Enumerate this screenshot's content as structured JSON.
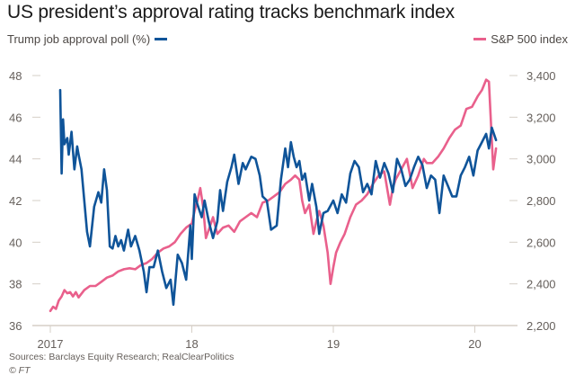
{
  "title": "US president’s approval rating tracks benchmark index",
  "legend": {
    "left_label": "Trump job approval poll (%)",
    "right_label": "S&P 500 index"
  },
  "colors": {
    "approval": "#0f5499",
    "sp500": "#e9608c",
    "axis": "#d6cfc7",
    "tick_text": "#66605c"
  },
  "footer": {
    "source": "Sources: Barclays Equity Research; RealClearPolitics",
    "copyright": "© FT"
  },
  "chart_data": {
    "type": "line",
    "title": "US president’s approval rating tracks benchmark index",
    "xlabel": "",
    "x_ticks": [
      2017,
      2018,
      2019,
      2020
    ],
    "x_tick_labels": [
      "2017",
      "18",
      "19",
      "20"
    ],
    "xlim": [
      2016.95,
      2020.2
    ],
    "y_left": {
      "label": "Trump job approval poll (%)",
      "lim": [
        36,
        48
      ],
      "ticks": [
        36,
        38,
        40,
        42,
        44,
        46,
        48
      ],
      "tick_labels": [
        "36",
        "38",
        "40",
        "42",
        "44",
        "46",
        "48"
      ]
    },
    "y_right": {
      "label": "S&P 500 index",
      "lim": [
        2200,
        3400
      ],
      "ticks": [
        2200,
        2400,
        2600,
        2800,
        3000,
        3200,
        3400
      ],
      "tick_labels": [
        "2,200",
        "2,400",
        "2,600",
        "2,800",
        "3,000",
        "3,200",
        "3,400"
      ]
    },
    "grid": false,
    "legend_placement": "top",
    "series": [
      {
        "name": "Trump job approval poll (%)",
        "axis": "left",
        "x": [
          2017.07,
          2017.08,
          2017.09,
          2017.1,
          2017.12,
          2017.13,
          2017.15,
          2017.17,
          2017.19,
          2017.2,
          2017.22,
          2017.24,
          2017.26,
          2017.28,
          2017.31,
          2017.34,
          2017.36,
          2017.38,
          2017.4,
          2017.42,
          2017.44,
          2017.46,
          2017.48,
          2017.5,
          2017.52,
          2017.55,
          2017.57,
          2017.6,
          2017.63,
          2017.66,
          2017.68,
          2017.7,
          2017.73,
          2017.76,
          2017.79,
          2017.82,
          2017.85,
          2017.87,
          2017.9,
          2017.93,
          2017.96,
          2017.99,
          2018.0,
          2018.02,
          2018.04,
          2018.07,
          2018.09,
          2018.12,
          2018.15,
          2018.18,
          2018.2,
          2018.22,
          2018.25,
          2018.28,
          2018.3,
          2018.33,
          2018.36,
          2018.38,
          2018.4,
          2018.42,
          2018.45,
          2018.48,
          2018.5,
          2018.53,
          2018.56,
          2018.6,
          2018.63,
          2018.66,
          2018.68,
          2018.7,
          2018.72,
          2018.74,
          2018.76,
          2018.78,
          2018.8,
          2018.83,
          2018.85,
          2018.88,
          2018.9,
          2018.93,
          2018.96,
          2019.0,
          2019.03,
          2019.06,
          2019.09,
          2019.12,
          2019.15,
          2019.18,
          2019.21,
          2019.24,
          2019.27,
          2019.3,
          2019.33,
          2019.36,
          2019.39,
          2019.42,
          2019.45,
          2019.48,
          2019.51,
          2019.54,
          2019.57,
          2019.6,
          2019.63,
          2019.66,
          2019.69,
          2019.72,
          2019.75,
          2019.78,
          2019.81,
          2019.84,
          2019.87,
          2019.9,
          2019.93,
          2019.96,
          2019.99,
          2020.02,
          2020.05,
          2020.08,
          2020.1,
          2020.12,
          2020.15
        ],
        "y": [
          47.3,
          43.3,
          45.9,
          44.7,
          45.0,
          44.2,
          45.3,
          43.5,
          44.6,
          44.2,
          43.5,
          42.0,
          40.5,
          39.8,
          41.7,
          42.4,
          41.9,
          43.5,
          42.5,
          39.8,
          39.7,
          40.3,
          39.8,
          40.1,
          39.6,
          40.6,
          39.8,
          40.3,
          39.6,
          38.6,
          37.6,
          38.8,
          38.8,
          39.6,
          38.6,
          37.8,
          38.2,
          37.0,
          39.4,
          39.0,
          38.2,
          40.8,
          39.2,
          42.3,
          41.8,
          41.2,
          42.0,
          41.0,
          40.2,
          41.0,
          42.5,
          41.5,
          42.9,
          43.6,
          44.2,
          42.8,
          43.8,
          43.5,
          43.8,
          44.1,
          44.0,
          43.2,
          42.2,
          42.0,
          40.6,
          40.8,
          43.0,
          44.5,
          43.6,
          44.8,
          44.1,
          43.6,
          43.9,
          43.0,
          43.3,
          42.0,
          42.8,
          41.7,
          40.4,
          41.4,
          41.5,
          42.0,
          41.4,
          42.3,
          41.9,
          43.3,
          43.9,
          43.6,
          42.4,
          42.8,
          42.3,
          43.9,
          43.1,
          43.8,
          43.3,
          42.4,
          44.0,
          43.5,
          42.7,
          43.0,
          43.6,
          44.1,
          43.7,
          42.6,
          43.2,
          43.0,
          41.4,
          43.2,
          42.7,
          42.2,
          42.2,
          43.2,
          43.6,
          44.1,
          43.2,
          44.4,
          44.8,
          45.2,
          44.5,
          45.5,
          44.9
        ]
      },
      {
        "name": "S&P 500 index",
        "axis": "right",
        "x": [
          2017.0,
          2017.02,
          2017.04,
          2017.06,
          2017.08,
          2017.1,
          2017.12,
          2017.14,
          2017.16,
          2017.18,
          2017.2,
          2017.24,
          2017.28,
          2017.32,
          2017.36,
          2017.4,
          2017.44,
          2017.48,
          2017.52,
          2017.56,
          2017.6,
          2017.64,
          2017.68,
          2017.72,
          2017.76,
          2017.8,
          2017.84,
          2017.88,
          2017.92,
          2017.96,
          2018.0,
          2018.02,
          2018.04,
          2018.06,
          2018.08,
          2018.1,
          2018.12,
          2018.15,
          2018.18,
          2018.22,
          2018.26,
          2018.3,
          2018.34,
          2018.38,
          2018.42,
          2018.46,
          2018.5,
          2018.54,
          2018.58,
          2018.62,
          2018.66,
          2018.7,
          2018.73,
          2018.76,
          2018.78,
          2018.8,
          2018.83,
          2018.86,
          2018.88,
          2018.9,
          2018.93,
          2018.96,
          2018.98,
          2019.0,
          2019.02,
          2019.05,
          2019.08,
          2019.12,
          2019.16,
          2019.2,
          2019.24,
          2019.28,
          2019.32,
          2019.36,
          2019.4,
          2019.42,
          2019.44,
          2019.48,
          2019.52,
          2019.56,
          2019.6,
          2019.62,
          2019.64,
          2019.66,
          2019.7,
          2019.74,
          2019.78,
          2019.82,
          2019.86,
          2019.9,
          2019.94,
          2019.98,
          2020.02,
          2020.05,
          2020.08,
          2020.1,
          2020.12,
          2020.13,
          2020.15
        ],
        "y": [
          2270,
          2290,
          2280,
          2320,
          2340,
          2370,
          2355,
          2360,
          2340,
          2360,
          2335,
          2370,
          2390,
          2390,
          2410,
          2430,
          2440,
          2460,
          2470,
          2475,
          2470,
          2490,
          2500,
          2520,
          2550,
          2570,
          2580,
          2600,
          2640,
          2670,
          2690,
          2750,
          2800,
          2860,
          2770,
          2620,
          2660,
          2720,
          2640,
          2670,
          2680,
          2650,
          2700,
          2720,
          2740,
          2720,
          2790,
          2800,
          2820,
          2840,
          2880,
          2900,
          2920,
          2900,
          2800,
          2740,
          2780,
          2640,
          2700,
          2750,
          2680,
          2550,
          2400,
          2480,
          2550,
          2600,
          2640,
          2720,
          2780,
          2800,
          2830,
          2880,
          2920,
          2940,
          2780,
          2860,
          2900,
          2950,
          3000,
          2860,
          2920,
          2960,
          3000,
          2980,
          2980,
          3010,
          3050,
          3100,
          3140,
          3160,
          3240,
          3250,
          3300,
          3330,
          3380,
          3370,
          3090,
          2950,
          3050
        ]
      }
    ]
  }
}
